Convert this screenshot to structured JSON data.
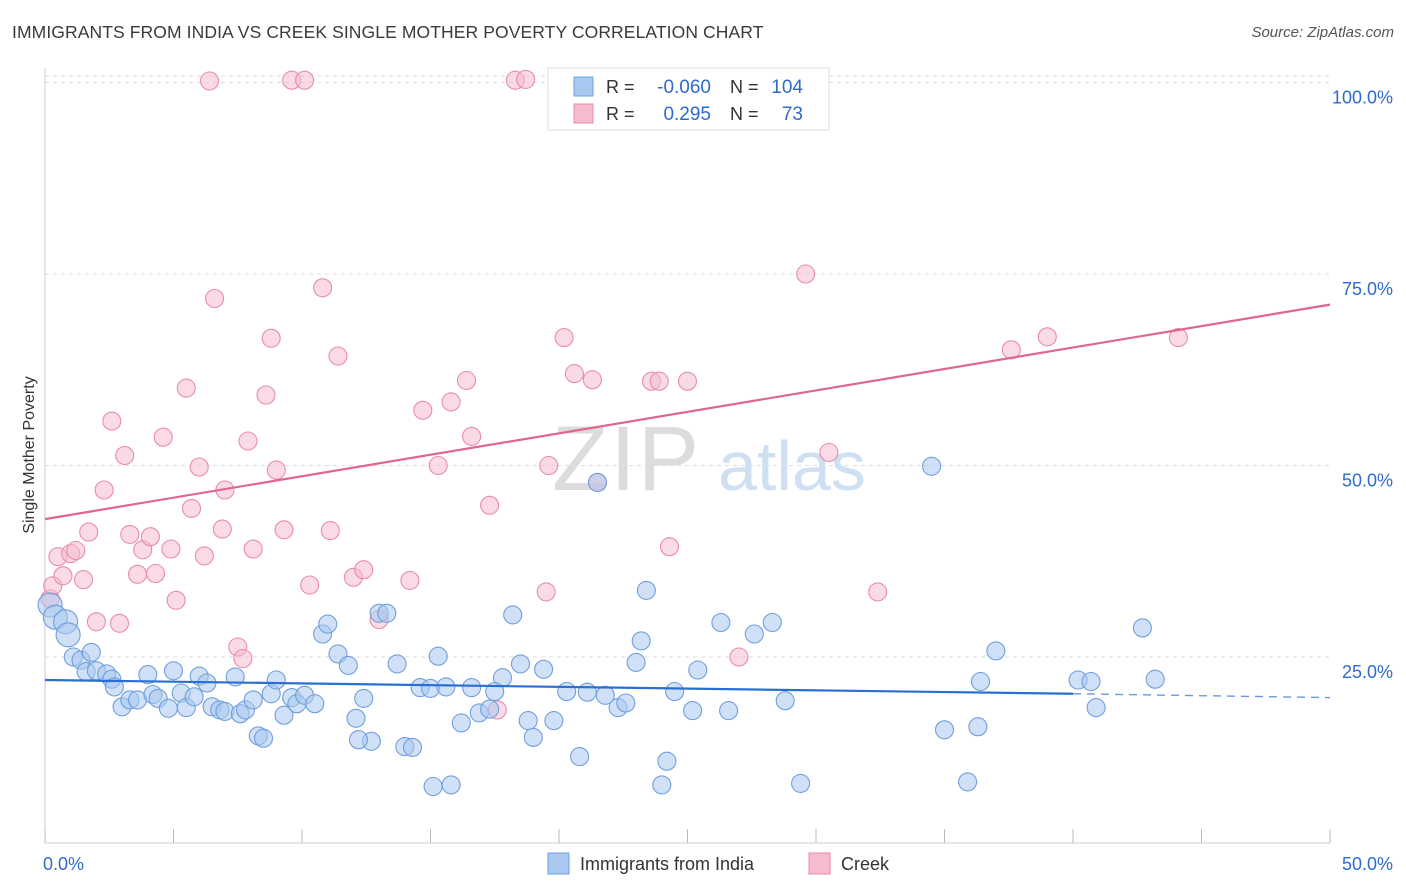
{
  "title": "IMMIGRANTS FROM INDIA VS CREEK SINGLE MOTHER POVERTY CORRELATION CHART",
  "source": "Source: ZipAtlas.com",
  "watermark": {
    "zip": "ZIP",
    "atlas": "atlas"
  },
  "legend_box": {
    "rows": [
      {
        "r_label": "R =",
        "r_value": "-0.060",
        "n_label": "N =",
        "n_value": "104"
      },
      {
        "r_label": "R =",
        "r_value": "0.295",
        "n_label": "N =",
        "n_value": "73"
      }
    ]
  },
  "bottom_legend": {
    "india": "Immigrants from India",
    "creek": "Creek"
  },
  "colors": {
    "india_fill": "#a9c8f0",
    "india_stroke": "#6f9fdc",
    "india_line": "#2a6fd0",
    "creek_fill": "#f6bccd",
    "creek_stroke": "#e98cab",
    "creek_line": "#e0668f",
    "value_text": "#2f6bc9",
    "grid": "#dddddd"
  },
  "chart_data": {
    "type": "scatter",
    "xlabel": "",
    "ylabel": "Single Mother Poverty",
    "xlim": [
      0,
      50
    ],
    "ylim": [
      0,
      105
    ],
    "x_ticks": [
      {
        "value": 0,
        "label": "0.0%"
      },
      {
        "value": 50,
        "label": "50.0%"
      }
    ],
    "y_ticks": [
      {
        "value": 25,
        "label": "25.0%"
      },
      {
        "value": 50,
        "label": "50.0%"
      },
      {
        "value": 75,
        "label": "75.0%"
      },
      {
        "value": 100,
        "label": "100.0%"
      }
    ],
    "x_minor_ticks": [
      0,
      5,
      10,
      15,
      20,
      25,
      30,
      35,
      40,
      45,
      50
    ],
    "grid": true,
    "series": [
      {
        "name": "Immigrants from India",
        "color": "#a9c8f0",
        "trend": {
          "x0": 0,
          "y0": 22.0,
          "x1": 40,
          "y1": 20.2,
          "dashed_to_x": 50,
          "dashed_to_y": 19.7
        },
        "points": [
          [
            0.2,
            31.8
          ],
          [
            0.4,
            30.2
          ],
          [
            0.8,
            29.6
          ],
          [
            0.9,
            27.9
          ],
          [
            1.1,
            25.0
          ],
          [
            1.4,
            24.6
          ],
          [
            1.6,
            23.1
          ],
          [
            1.8,
            25.6
          ],
          [
            2.0,
            23.2
          ],
          [
            2.4,
            22.8
          ],
          [
            2.6,
            22.1
          ],
          [
            2.7,
            21.1
          ],
          [
            3.0,
            18.5
          ],
          [
            3.3,
            19.4
          ],
          [
            3.6,
            19.4
          ],
          [
            4.0,
            22.7
          ],
          [
            4.2,
            20.1
          ],
          [
            4.4,
            19.6
          ],
          [
            4.8,
            18.3
          ],
          [
            5.0,
            23.2
          ],
          [
            5.3,
            20.3
          ],
          [
            5.5,
            18.4
          ],
          [
            5.8,
            19.8
          ],
          [
            6.0,
            22.5
          ],
          [
            6.3,
            21.6
          ],
          [
            6.5,
            18.5
          ],
          [
            6.8,
            18.1
          ],
          [
            7.0,
            17.9
          ],
          [
            7.4,
            22.4
          ],
          [
            7.6,
            17.6
          ],
          [
            7.8,
            18.1
          ],
          [
            8.1,
            19.4
          ],
          [
            8.3,
            14.7
          ],
          [
            8.5,
            14.4
          ],
          [
            8.8,
            20.2
          ],
          [
            9.0,
            22.0
          ],
          [
            9.3,
            17.4
          ],
          [
            9.6,
            19.7
          ],
          [
            9.8,
            18.9
          ],
          [
            10.1,
            20.0
          ],
          [
            10.5,
            18.9
          ],
          [
            10.8,
            28.0
          ],
          [
            11.0,
            29.3
          ],
          [
            11.4,
            25.4
          ],
          [
            11.8,
            23.9
          ],
          [
            12.1,
            17.0
          ],
          [
            12.4,
            19.6
          ],
          [
            12.7,
            14.0
          ],
          [
            12.2,
            14.2
          ],
          [
            13.0,
            30.7
          ],
          [
            13.3,
            30.7
          ],
          [
            13.7,
            24.1
          ],
          [
            14.0,
            13.3
          ],
          [
            14.3,
            13.2
          ],
          [
            14.6,
            21.0
          ],
          [
            15.0,
            20.9
          ],
          [
            15.3,
            25.1
          ],
          [
            15.6,
            21.1
          ],
          [
            15.1,
            8.1
          ],
          [
            15.8,
            8.3
          ],
          [
            16.2,
            16.4
          ],
          [
            16.6,
            21.0
          ],
          [
            16.9,
            17.7
          ],
          [
            17.3,
            18.2
          ],
          [
            17.8,
            22.3
          ],
          [
            17.5,
            20.5
          ],
          [
            18.2,
            30.5
          ],
          [
            18.5,
            24.1
          ],
          [
            18.8,
            16.7
          ],
          [
            19.0,
            14.5
          ],
          [
            19.4,
            23.4
          ],
          [
            19.8,
            16.7
          ],
          [
            20.3,
            20.5
          ],
          [
            20.8,
            12.0
          ],
          [
            21.1,
            20.4
          ],
          [
            21.5,
            47.8
          ],
          [
            21.8,
            20.0
          ],
          [
            22.3,
            18.4
          ],
          [
            22.6,
            19.0
          ],
          [
            23.0,
            24.3
          ],
          [
            23.2,
            27.1
          ],
          [
            23.4,
            33.7
          ],
          [
            24.2,
            11.4
          ],
          [
            24.0,
            8.3
          ],
          [
            24.5,
            20.5
          ],
          [
            25.2,
            18.0
          ],
          [
            25.4,
            23.3
          ],
          [
            26.3,
            29.5
          ],
          [
            26.6,
            18.0
          ],
          [
            27.6,
            28.0
          ],
          [
            28.3,
            29.5
          ],
          [
            28.8,
            19.3
          ],
          [
            29.4,
            8.5
          ],
          [
            34.5,
            49.9
          ],
          [
            35.0,
            15.5
          ],
          [
            36.3,
            15.9
          ],
          [
            36.4,
            21.8
          ],
          [
            37.0,
            25.8
          ],
          [
            40.2,
            22.0
          ],
          [
            40.7,
            21.8
          ],
          [
            40.9,
            18.4
          ],
          [
            42.7,
            28.8
          ],
          [
            43.2,
            22.1
          ],
          [
            35.9,
            8.7
          ]
        ]
      },
      {
        "name": "Creek",
        "color": "#f6bccd",
        "trend": {
          "x0": 0,
          "y0": 43.0,
          "x1": 50,
          "y1": 71.0
        },
        "points": [
          [
            0.2,
            32.6
          ],
          [
            0.3,
            34.3
          ],
          [
            0.5,
            38.1
          ],
          [
            0.7,
            35.6
          ],
          [
            1.0,
            38.5
          ],
          [
            1.2,
            38.9
          ],
          [
            1.5,
            35.1
          ],
          [
            1.7,
            41.3
          ],
          [
            2.0,
            29.6
          ],
          [
            2.3,
            46.8
          ],
          [
            2.6,
            55.8
          ],
          [
            2.9,
            29.4
          ],
          [
            3.1,
            51.3
          ],
          [
            3.3,
            41.0
          ],
          [
            3.6,
            35.8
          ],
          [
            3.8,
            39.0
          ],
          [
            4.1,
            40.7
          ],
          [
            4.3,
            35.9
          ],
          [
            4.6,
            53.7
          ],
          [
            4.9,
            39.1
          ],
          [
            5.1,
            32.4
          ],
          [
            5.5,
            60.1
          ],
          [
            5.7,
            44.4
          ],
          [
            6.0,
            49.8
          ],
          [
            6.2,
            38.2
          ],
          [
            6.4,
            100.2
          ],
          [
            6.6,
            71.8
          ],
          [
            6.9,
            41.7
          ],
          [
            7.0,
            46.8
          ],
          [
            7.5,
            26.3
          ],
          [
            7.7,
            24.8
          ],
          [
            7.9,
            53.2
          ],
          [
            8.1,
            39.1
          ],
          [
            8.6,
            59.2
          ],
          [
            8.8,
            66.6
          ],
          [
            9.0,
            49.4
          ],
          [
            9.3,
            41.6
          ],
          [
            9.6,
            100.3
          ],
          [
            10.1,
            100.3
          ],
          [
            10.3,
            34.4
          ],
          [
            10.8,
            73.2
          ],
          [
            11.1,
            41.5
          ],
          [
            11.4,
            64.3
          ],
          [
            12.0,
            35.4
          ],
          [
            12.4,
            36.4
          ],
          [
            13.0,
            29.9
          ],
          [
            14.2,
            35.0
          ],
          [
            14.7,
            57.2
          ],
          [
            15.3,
            50.0
          ],
          [
            15.8,
            58.3
          ],
          [
            16.4,
            61.1
          ],
          [
            16.6,
            53.8
          ],
          [
            17.3,
            44.8
          ],
          [
            17.6,
            18.1
          ],
          [
            18.3,
            100.3
          ],
          [
            18.7,
            100.4
          ],
          [
            19.5,
            33.5
          ],
          [
            19.6,
            50.0
          ],
          [
            20.2,
            66.7
          ],
          [
            20.6,
            62.0
          ],
          [
            21.5,
            47.8
          ],
          [
            23.6,
            61.0
          ],
          [
            23.9,
            61.0
          ],
          [
            24.3,
            39.4
          ],
          [
            25.0,
            61.0
          ],
          [
            27.0,
            25.0
          ],
          [
            29.6,
            75.0
          ],
          [
            30.5,
            51.7
          ],
          [
            32.4,
            33.5
          ],
          [
            37.6,
            65.1
          ],
          [
            39.0,
            66.8
          ],
          [
            44.1,
            66.7
          ],
          [
            21.3,
            61.2
          ]
        ]
      }
    ]
  }
}
